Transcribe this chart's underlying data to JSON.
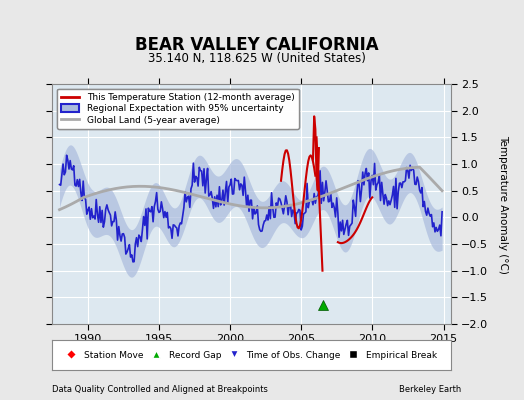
{
  "title": "BEAR VALLEY CALIFORNIA",
  "subtitle": "35.140 N, 118.625 W (United States)",
  "ylabel": "Temperature Anomaly (°C)",
  "footer_left": "Data Quality Controlled and Aligned at Breakpoints",
  "footer_right": "Berkeley Earth",
  "xlim": [
    1987.5,
    2015.5
  ],
  "ylim": [
    -2.0,
    2.5
  ],
  "yticks": [
    -2,
    -1.5,
    -1,
    -0.5,
    0,
    0.5,
    1,
    1.5,
    2,
    2.5
  ],
  "xticks": [
    1990,
    1995,
    2000,
    2005,
    2010,
    2015
  ],
  "bg_color": "#e8e8e8",
  "plot_bg_color": "#dde8f0",
  "grid_color": "white",
  "regional_line_color": "#2222cc",
  "regional_fill_color": "#aabbdd",
  "station_line_color": "#cc0000",
  "global_line_color": "#aaaaaa",
  "record_gap_marker_x": 2006.5,
  "record_gap_marker_y": -1.65,
  "legend1_labels": [
    "This Temperature Station (12-month average)",
    "Regional Expectation with 95% uncertainty",
    "Global Land (5-year average)"
  ],
  "legend2_labels": [
    "Station Move",
    "Record Gap",
    "Time of Obs. Change",
    "Empirical Break"
  ]
}
